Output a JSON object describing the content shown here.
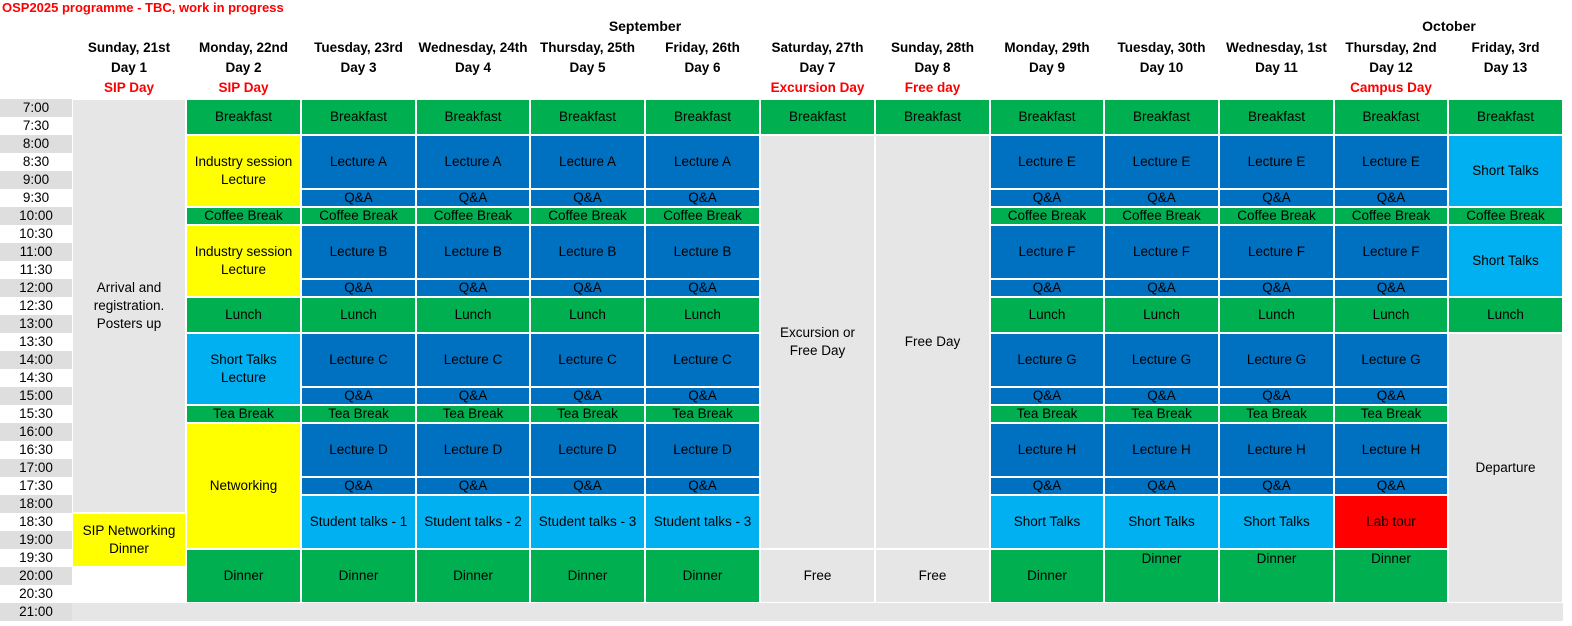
{
  "title": "OSP2025 programme - TBC, work in progress",
  "months": [
    {
      "label": "September",
      "left": 530,
      "width": 230
    },
    {
      "label": "October",
      "left": 1334,
      "width": 230
    }
  ],
  "colors": {
    "green": "#00b050",
    "blue": "#0070c0",
    "lightblue": "#00b0f0",
    "yellow": "#ffff00",
    "grey": "#e7e6e6",
    "red": "#ff0000"
  },
  "days": [
    {
      "name": "Sunday, 21st",
      "day": "Day 1",
      "sub": "SIP Day"
    },
    {
      "name": "Monday, 22nd",
      "day": "Day 2",
      "sub": "SIP Day"
    },
    {
      "name": "Tuesday, 23rd",
      "day": "Day 3",
      "sub": ""
    },
    {
      "name": "Wednesday, 24th",
      "day": "Day 4",
      "sub": ""
    },
    {
      "name": "Thursday, 25th",
      "day": "Day 5",
      "sub": ""
    },
    {
      "name": "Friday, 26th",
      "day": "Day 6",
      "sub": ""
    },
    {
      "name": "Saturday, 27th",
      "day": "Day 7",
      "sub": "Excursion Day"
    },
    {
      "name": "Sunday, 28th",
      "day": "Day 8",
      "sub": "Free day"
    },
    {
      "name": "Monday, 29th",
      "day": "Day 9",
      "sub": ""
    },
    {
      "name": "Tuesday, 30th",
      "day": "Day 10",
      "sub": ""
    },
    {
      "name": "Wednesday, 1st",
      "day": "Day 11",
      "sub": ""
    },
    {
      "name": "Thursday, 2nd",
      "day": "Day 12",
      "sub": "Campus Day"
    },
    {
      "name": "Friday, 3rd",
      "day": "Day 13",
      "sub": ""
    }
  ],
  "times": [
    "7:00",
    "7:30",
    "8:00",
    "8:30",
    "9:00",
    "9:30",
    "10:00",
    "10:30",
    "11:00",
    "11:30",
    "12:00",
    "12:30",
    "13:00",
    "13:30",
    "14:00",
    "14:30",
    "15:00",
    "15:30",
    "16:00",
    "16:30",
    "17:00",
    "17:30",
    "18:00",
    "18:30",
    "19:00",
    "19:30",
    "20:00",
    "20:30",
    "21:00"
  ],
  "cells": [
    {
      "c": 0,
      "r0": 0,
      "r1": 23,
      "text": "Arrival and registration. Posters up",
      "color": "grey",
      "valign": "center"
    },
    {
      "c": 0,
      "r0": 23,
      "r1": 26,
      "text": "SIP Networking Dinner",
      "color": "yellow"
    },
    {
      "c": 1,
      "r0": 0,
      "r1": 2,
      "text": "Breakfast",
      "color": "green"
    },
    {
      "c": 1,
      "r0": 2,
      "r1": 6,
      "text": "Industry session Lecture",
      "color": "yellow"
    },
    {
      "c": 1,
      "r0": 6,
      "r1": 7,
      "text": "Coffee Break",
      "color": "green"
    },
    {
      "c": 1,
      "r0": 7,
      "r1": 11,
      "text": "Industry session Lecture",
      "color": "yellow"
    },
    {
      "c": 1,
      "r0": 11,
      "r1": 13,
      "text": "Lunch",
      "color": "green"
    },
    {
      "c": 1,
      "r0": 13,
      "r1": 17,
      "text": "Short Talks Lecture",
      "color": "lightblue"
    },
    {
      "c": 1,
      "r0": 17,
      "r1": 18,
      "text": "Tea Break",
      "color": "green"
    },
    {
      "c": 1,
      "r0": 18,
      "r1": 25,
      "text": "Networking",
      "color": "yellow"
    },
    {
      "c": 1,
      "r0": 25,
      "r1": 28,
      "text": "Dinner",
      "color": "green"
    },
    {
      "c": 2,
      "r0": 0,
      "r1": 2,
      "text": "Breakfast",
      "color": "green"
    },
    {
      "c": 2,
      "r0": 2,
      "r1": 5,
      "text": "Lecture A",
      "color": "blue"
    },
    {
      "c": 2,
      "r0": 5,
      "r1": 6,
      "text": "Q&A",
      "color": "blue"
    },
    {
      "c": 2,
      "r0": 6,
      "r1": 7,
      "text": "Coffee Break",
      "color": "green"
    },
    {
      "c": 2,
      "r0": 7,
      "r1": 10,
      "text": "Lecture B",
      "color": "blue"
    },
    {
      "c": 2,
      "r0": 10,
      "r1": 11,
      "text": "Q&A",
      "color": "blue"
    },
    {
      "c": 2,
      "r0": 11,
      "r1": 13,
      "text": "Lunch",
      "color": "green"
    },
    {
      "c": 2,
      "r0": 13,
      "r1": 16,
      "text": "Lecture C",
      "color": "blue"
    },
    {
      "c": 2,
      "r0": 16,
      "r1": 17,
      "text": "Q&A",
      "color": "blue"
    },
    {
      "c": 2,
      "r0": 17,
      "r1": 18,
      "text": "Tea Break",
      "color": "green"
    },
    {
      "c": 2,
      "r0": 18,
      "r1": 21,
      "text": "Lecture D",
      "color": "blue"
    },
    {
      "c": 2,
      "r0": 21,
      "r1": 22,
      "text": "Q&A",
      "color": "blue"
    },
    {
      "c": 2,
      "r0": 22,
      "r1": 25,
      "text": "Student talks - 1",
      "color": "lightblue"
    },
    {
      "c": 2,
      "r0": 25,
      "r1": 28,
      "text": "Dinner",
      "color": "green"
    },
    {
      "c": 3,
      "r0": 0,
      "r1": 2,
      "text": "Breakfast",
      "color": "green"
    },
    {
      "c": 3,
      "r0": 2,
      "r1": 5,
      "text": "Lecture A",
      "color": "blue"
    },
    {
      "c": 3,
      "r0": 5,
      "r1": 6,
      "text": "Q&A",
      "color": "blue"
    },
    {
      "c": 3,
      "r0": 6,
      "r1": 7,
      "text": "Coffee Break",
      "color": "green"
    },
    {
      "c": 3,
      "r0": 7,
      "r1": 10,
      "text": "Lecture B",
      "color": "blue"
    },
    {
      "c": 3,
      "r0": 10,
      "r1": 11,
      "text": "Q&A",
      "color": "blue"
    },
    {
      "c": 3,
      "r0": 11,
      "r1": 13,
      "text": "Lunch",
      "color": "green"
    },
    {
      "c": 3,
      "r0": 13,
      "r1": 16,
      "text": "Lecture C",
      "color": "blue"
    },
    {
      "c": 3,
      "r0": 16,
      "r1": 17,
      "text": "Q&A",
      "color": "blue"
    },
    {
      "c": 3,
      "r0": 17,
      "r1": 18,
      "text": "Tea Break",
      "color": "green"
    },
    {
      "c": 3,
      "r0": 18,
      "r1": 21,
      "text": "Lecture D",
      "color": "blue"
    },
    {
      "c": 3,
      "r0": 21,
      "r1": 22,
      "text": "Q&A",
      "color": "blue"
    },
    {
      "c": 3,
      "r0": 22,
      "r1": 25,
      "text": "Student talks - 2",
      "color": "lightblue"
    },
    {
      "c": 3,
      "r0": 25,
      "r1": 28,
      "text": "Dinner",
      "color": "green"
    },
    {
      "c": 4,
      "r0": 0,
      "r1": 2,
      "text": "Breakfast",
      "color": "green"
    },
    {
      "c": 4,
      "r0": 2,
      "r1": 5,
      "text": "Lecture A",
      "color": "blue"
    },
    {
      "c": 4,
      "r0": 5,
      "r1": 6,
      "text": "Q&A",
      "color": "blue"
    },
    {
      "c": 4,
      "r0": 6,
      "r1": 7,
      "text": "Coffee Break",
      "color": "green"
    },
    {
      "c": 4,
      "r0": 7,
      "r1": 10,
      "text": "Lecture B",
      "color": "blue"
    },
    {
      "c": 4,
      "r0": 10,
      "r1": 11,
      "text": "Q&A",
      "color": "blue"
    },
    {
      "c": 4,
      "r0": 11,
      "r1": 13,
      "text": "Lunch",
      "color": "green"
    },
    {
      "c": 4,
      "r0": 13,
      "r1": 16,
      "text": "Lecture C",
      "color": "blue"
    },
    {
      "c": 4,
      "r0": 16,
      "r1": 17,
      "text": "Q&A",
      "color": "blue"
    },
    {
      "c": 4,
      "r0": 17,
      "r1": 18,
      "text": "Tea Break",
      "color": "green"
    },
    {
      "c": 4,
      "r0": 18,
      "r1": 21,
      "text": "Lecture D",
      "color": "blue"
    },
    {
      "c": 4,
      "r0": 21,
      "r1": 22,
      "text": "Q&A",
      "color": "blue"
    },
    {
      "c": 4,
      "r0": 22,
      "r1": 25,
      "text": "Student talks - 3",
      "color": "lightblue"
    },
    {
      "c": 4,
      "r0": 25,
      "r1": 28,
      "text": "Dinner",
      "color": "green"
    },
    {
      "c": 5,
      "r0": 0,
      "r1": 2,
      "text": "Breakfast",
      "color": "green"
    },
    {
      "c": 5,
      "r0": 2,
      "r1": 5,
      "text": "Lecture A",
      "color": "blue"
    },
    {
      "c": 5,
      "r0": 5,
      "r1": 6,
      "text": "Q&A",
      "color": "blue"
    },
    {
      "c": 5,
      "r0": 6,
      "r1": 7,
      "text": "Coffee Break",
      "color": "green"
    },
    {
      "c": 5,
      "r0": 7,
      "r1": 10,
      "text": "Lecture B",
      "color": "blue"
    },
    {
      "c": 5,
      "r0": 10,
      "r1": 11,
      "text": "Q&A",
      "color": "blue"
    },
    {
      "c": 5,
      "r0": 11,
      "r1": 13,
      "text": "Lunch",
      "color": "green"
    },
    {
      "c": 5,
      "r0": 13,
      "r1": 16,
      "text": "Lecture C",
      "color": "blue"
    },
    {
      "c": 5,
      "r0": 16,
      "r1": 17,
      "text": "Q&A",
      "color": "blue"
    },
    {
      "c": 5,
      "r0": 17,
      "r1": 18,
      "text": "Tea Break",
      "color": "green"
    },
    {
      "c": 5,
      "r0": 18,
      "r1": 21,
      "text": "Lecture D",
      "color": "blue"
    },
    {
      "c": 5,
      "r0": 21,
      "r1": 22,
      "text": "Q&A",
      "color": "blue"
    },
    {
      "c": 5,
      "r0": 22,
      "r1": 25,
      "text": "Student talks - 3",
      "color": "lightblue"
    },
    {
      "c": 5,
      "r0": 25,
      "r1": 28,
      "text": "Dinner",
      "color": "green"
    },
    {
      "c": 6,
      "r0": 0,
      "r1": 2,
      "text": "Breakfast",
      "color": "green"
    },
    {
      "c": 6,
      "r0": 2,
      "r1": 25,
      "text": "Excursion or Free Day",
      "color": "grey"
    },
    {
      "c": 6,
      "r0": 25,
      "r1": 28,
      "text": "Free",
      "color": "grey"
    },
    {
      "c": 7,
      "r0": 0,
      "r1": 2,
      "text": "Breakfast",
      "color": "green"
    },
    {
      "c": 7,
      "r0": 2,
      "r1": 25,
      "text": "Free Day",
      "color": "grey"
    },
    {
      "c": 7,
      "r0": 25,
      "r1": 28,
      "text": "Free",
      "color": "grey"
    },
    {
      "c": 8,
      "r0": 0,
      "r1": 2,
      "text": "Breakfast",
      "color": "green"
    },
    {
      "c": 8,
      "r0": 2,
      "r1": 5,
      "text": "Lecture E",
      "color": "blue"
    },
    {
      "c": 8,
      "r0": 5,
      "r1": 6,
      "text": "Q&A",
      "color": "blue"
    },
    {
      "c": 8,
      "r0": 6,
      "r1": 7,
      "text": "Coffee Break",
      "color": "green"
    },
    {
      "c": 8,
      "r0": 7,
      "r1": 10,
      "text": "Lecture F",
      "color": "blue"
    },
    {
      "c": 8,
      "r0": 10,
      "r1": 11,
      "text": "Q&A",
      "color": "blue"
    },
    {
      "c": 8,
      "r0": 11,
      "r1": 13,
      "text": "Lunch",
      "color": "green"
    },
    {
      "c": 8,
      "r0": 13,
      "r1": 16,
      "text": "Lecture G",
      "color": "blue"
    },
    {
      "c": 8,
      "r0": 16,
      "r1": 17,
      "text": "Q&A",
      "color": "blue"
    },
    {
      "c": 8,
      "r0": 17,
      "r1": 18,
      "text": "Tea Break",
      "color": "green"
    },
    {
      "c": 8,
      "r0": 18,
      "r1": 21,
      "text": "Lecture H",
      "color": "blue"
    },
    {
      "c": 8,
      "r0": 21,
      "r1": 22,
      "text": "Q&A",
      "color": "blue"
    },
    {
      "c": 8,
      "r0": 22,
      "r1": 25,
      "text": "Short Talks",
      "color": "lightblue"
    },
    {
      "c": 8,
      "r0": 25,
      "r1": 28,
      "text": "Dinner",
      "color": "green"
    },
    {
      "c": 9,
      "r0": 0,
      "r1": 2,
      "text": "Breakfast",
      "color": "green"
    },
    {
      "c": 9,
      "r0": 2,
      "r1": 5,
      "text": "Lecture E",
      "color": "blue"
    },
    {
      "c": 9,
      "r0": 5,
      "r1": 6,
      "text": "Q&A",
      "color": "blue"
    },
    {
      "c": 9,
      "r0": 6,
      "r1": 7,
      "text": "Coffee Break",
      "color": "green"
    },
    {
      "c": 9,
      "r0": 7,
      "r1": 10,
      "text": "Lecture F",
      "color": "blue"
    },
    {
      "c": 9,
      "r0": 10,
      "r1": 11,
      "text": "Q&A",
      "color": "blue"
    },
    {
      "c": 9,
      "r0": 11,
      "r1": 13,
      "text": "Lunch",
      "color": "green"
    },
    {
      "c": 9,
      "r0": 13,
      "r1": 16,
      "text": "Lecture G",
      "color": "blue"
    },
    {
      "c": 9,
      "r0": 16,
      "r1": 17,
      "text": "Q&A",
      "color": "blue"
    },
    {
      "c": 9,
      "r0": 17,
      "r1": 18,
      "text": "Tea Break",
      "color": "green"
    },
    {
      "c": 9,
      "r0": 18,
      "r1": 21,
      "text": "Lecture H",
      "color": "blue"
    },
    {
      "c": 9,
      "r0": 21,
      "r1": 22,
      "text": "Q&A",
      "color": "blue"
    },
    {
      "c": 9,
      "r0": 22,
      "r1": 25,
      "text": "Short Talks",
      "color": "lightblue"
    },
    {
      "c": 9,
      "r0": 25,
      "r1": 28,
      "text": "Dinner",
      "color": "green",
      "valign": "top"
    },
    {
      "c": 10,
      "r0": 0,
      "r1": 2,
      "text": "Breakfast",
      "color": "green"
    },
    {
      "c": 10,
      "r0": 2,
      "r1": 5,
      "text": "Lecture E",
      "color": "blue"
    },
    {
      "c": 10,
      "r0": 5,
      "r1": 6,
      "text": "Q&A",
      "color": "blue"
    },
    {
      "c": 10,
      "r0": 6,
      "r1": 7,
      "text": "Coffee Break",
      "color": "green"
    },
    {
      "c": 10,
      "r0": 7,
      "r1": 10,
      "text": "Lecture F",
      "color": "blue"
    },
    {
      "c": 10,
      "r0": 10,
      "r1": 11,
      "text": "Q&A",
      "color": "blue"
    },
    {
      "c": 10,
      "r0": 11,
      "r1": 13,
      "text": "Lunch",
      "color": "green"
    },
    {
      "c": 10,
      "r0": 13,
      "r1": 16,
      "text": "Lecture G",
      "color": "blue"
    },
    {
      "c": 10,
      "r0": 16,
      "r1": 17,
      "text": "Q&A",
      "color": "blue"
    },
    {
      "c": 10,
      "r0": 17,
      "r1": 18,
      "text": "Tea Break",
      "color": "green"
    },
    {
      "c": 10,
      "r0": 18,
      "r1": 21,
      "text": "Lecture H",
      "color": "blue"
    },
    {
      "c": 10,
      "r0": 21,
      "r1": 22,
      "text": "Q&A",
      "color": "blue"
    },
    {
      "c": 10,
      "r0": 22,
      "r1": 25,
      "text": "Short Talks",
      "color": "lightblue"
    },
    {
      "c": 10,
      "r0": 25,
      "r1": 28,
      "text": "Dinner",
      "color": "green",
      "valign": "top"
    },
    {
      "c": 11,
      "r0": 0,
      "r1": 2,
      "text": "Breakfast",
      "color": "green"
    },
    {
      "c": 11,
      "r0": 2,
      "r1": 5,
      "text": "Lecture E",
      "color": "blue"
    },
    {
      "c": 11,
      "r0": 5,
      "r1": 6,
      "text": "Q&A",
      "color": "blue"
    },
    {
      "c": 11,
      "r0": 6,
      "r1": 7,
      "text": "Coffee Break",
      "color": "green"
    },
    {
      "c": 11,
      "r0": 7,
      "r1": 10,
      "text": "Lecture F",
      "color": "blue"
    },
    {
      "c": 11,
      "r0": 10,
      "r1": 11,
      "text": "Q&A",
      "color": "blue"
    },
    {
      "c": 11,
      "r0": 11,
      "r1": 13,
      "text": "Lunch",
      "color": "green"
    },
    {
      "c": 11,
      "r0": 13,
      "r1": 16,
      "text": "Lecture G",
      "color": "blue"
    },
    {
      "c": 11,
      "r0": 16,
      "r1": 17,
      "text": "Q&A",
      "color": "blue"
    },
    {
      "c": 11,
      "r0": 17,
      "r1": 18,
      "text": "Tea Break",
      "color": "green"
    },
    {
      "c": 11,
      "r0": 18,
      "r1": 21,
      "text": "Lecture H",
      "color": "blue"
    },
    {
      "c": 11,
      "r0": 21,
      "r1": 22,
      "text": "Q&A",
      "color": "blue"
    },
    {
      "c": 11,
      "r0": 22,
      "r1": 25,
      "text": "Lab tour",
      "color": "red"
    },
    {
      "c": 11,
      "r0": 25,
      "r1": 28,
      "text": "Dinner",
      "color": "green",
      "valign": "top"
    },
    {
      "c": 12,
      "r0": 0,
      "r1": 2,
      "text": "Breakfast",
      "color": "green"
    },
    {
      "c": 12,
      "r0": 2,
      "r1": 6,
      "text": "Short Talks",
      "color": "lightblue"
    },
    {
      "c": 12,
      "r0": 6,
      "r1": 7,
      "text": "Coffee Break",
      "color": "green"
    },
    {
      "c": 12,
      "r0": 7,
      "r1": 11,
      "text": "Short Talks",
      "color": "lightblue"
    },
    {
      "c": 12,
      "r0": 11,
      "r1": 13,
      "text": "Lunch",
      "color": "green"
    },
    {
      "c": 12,
      "r0": 13,
      "r1": 28,
      "text": "Departure",
      "color": "grey"
    }
  ]
}
